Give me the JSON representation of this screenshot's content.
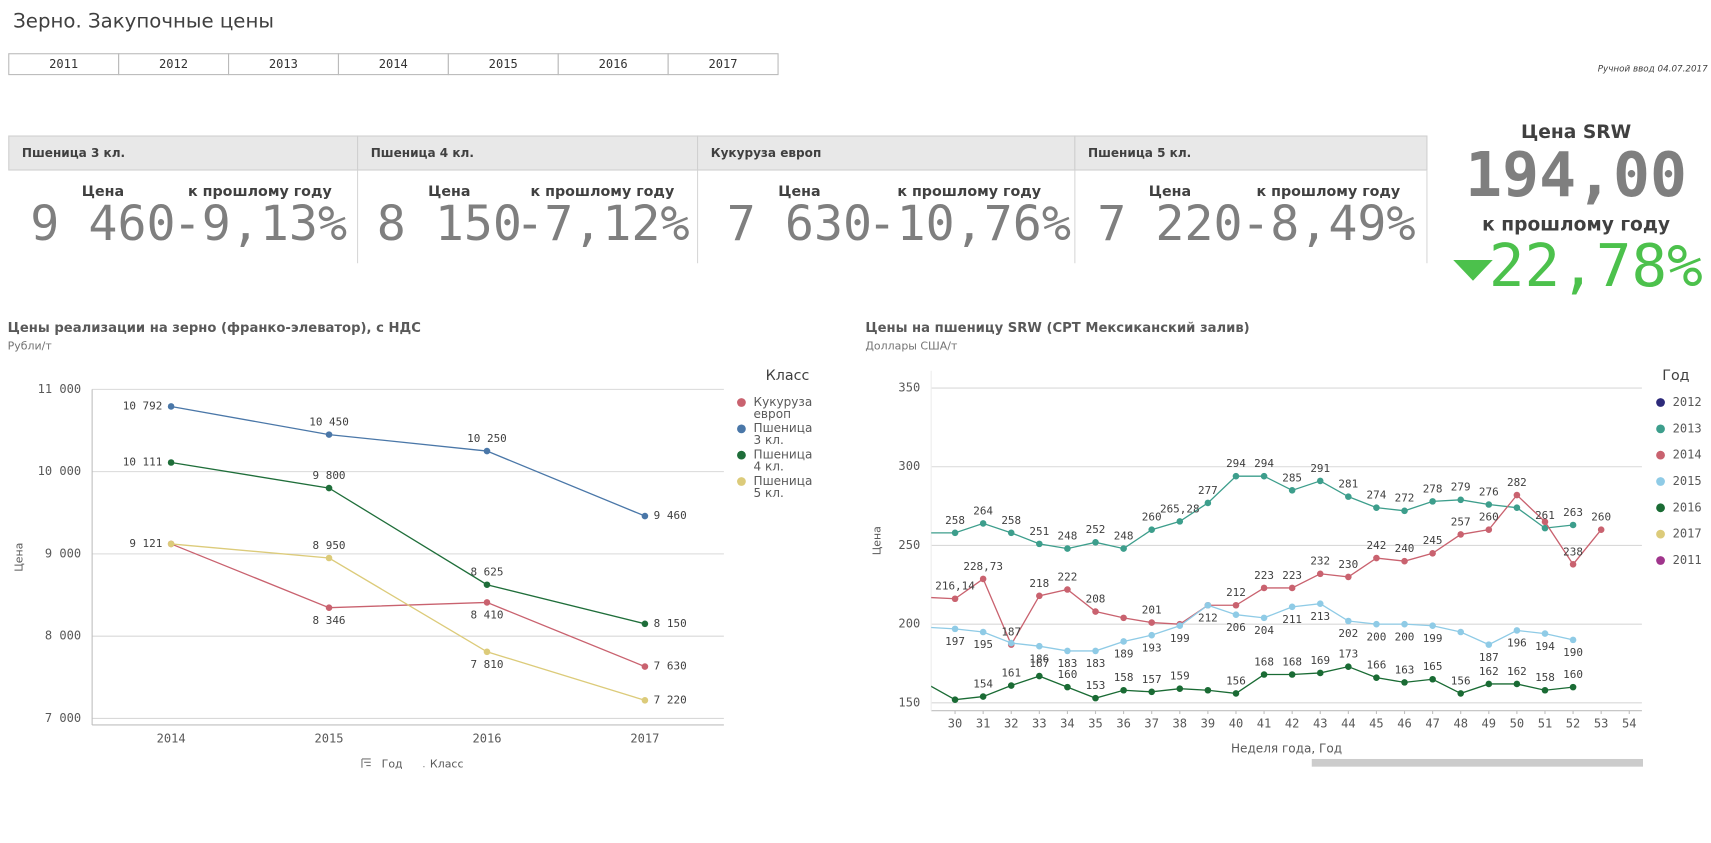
{
  "header": {
    "title": "Зерно. Закупочные цены",
    "note": "Ручной ввод 04.07.2017"
  },
  "year_buttons": [
    "2011",
    "2012",
    "2013",
    "2014",
    "2015",
    "2016",
    "2017"
  ],
  "kpis": [
    {
      "name": "Пшеница 3 кл.",
      "price_label": "Цена",
      "price": "9 460",
      "change_label": "к прошлому году",
      "change": "-9,13%"
    },
    {
      "name": "Пшеница 4 кл.",
      "price_label": "Цена",
      "price": "8 150",
      "change_label": "к прошлому году",
      "change": "-7,12%"
    },
    {
      "name": "Кукуруза европ",
      "price_label": "Цена",
      "price": "7 630",
      "change_label": "к прошлому году",
      "change": "-10,76%"
    },
    {
      "name": "Пшеница 5 кл.",
      "price_label": "Цена",
      "price": "7 220",
      "change_label": "к прошлому году",
      "change": "-8,49%"
    }
  ],
  "srw": {
    "title": "Цена SRW",
    "price": "194,00",
    "change_label": "к прошлому году",
    "change": "22,78%"
  },
  "chart_data": [
    {
      "type": "line",
      "title": "Цены реализации на зерно (франко-элеватор), с НДС",
      "subtitle": "Рубли/т",
      "y_label": "Цена",
      "legend_title": "Класс",
      "dimensions": [
        "Год",
        "Класс"
      ],
      "categories": [
        "2014",
        "2015",
        "2016",
        "2017"
      ],
      "ylim": [
        6920,
        11000
      ],
      "yticks": [
        {
          "value": 7000,
          "label": "7 000"
        },
        {
          "value": 8000,
          "label": "8 000"
        },
        {
          "value": 9000,
          "label": "9 000"
        },
        {
          "value": 10000,
          "label": "10 000"
        },
        {
          "value": 11000,
          "label": "11 000"
        }
      ],
      "grid": true,
      "series": [
        {
          "name": "Кукуруза европ",
          "color": "#c9626f",
          "values": [
            9121,
            8346,
            8410,
            7630
          ],
          "value_labels": [
            null,
            "8 346",
            "8 410",
            "7 630"
          ]
        },
        {
          "name": "Пшеница 3 кл.",
          "color": "#4a77a8",
          "values": [
            10792,
            10450,
            10250,
            9460
          ],
          "value_labels": [
            "10 792",
            "10 450",
            "10 250",
            "9 460"
          ]
        },
        {
          "name": "Пшеница 4 кл.",
          "color": "#1f6e3a",
          "values": [
            10111,
            9800,
            8625,
            8150
          ],
          "value_labels": [
            "10 111",
            "9 800",
            "8 625",
            "8 150"
          ]
        },
        {
          "name": "Пшеница 5 кл.",
          "color": "#dccb7a",
          "values": [
            9121,
            8950,
            7810,
            7220
          ],
          "value_labels": [
            "9 121",
            "8 950",
            "7 810",
            "7 220"
          ]
        }
      ]
    },
    {
      "type": "line",
      "title": "Цены на пшеницу SRW (CPT Мексиканский залив)",
      "subtitle": "Доллары США/т",
      "y_label": "Цена",
      "x_label": "Неделя года, Год",
      "legend_title": "Год",
      "x": [
        29,
        30,
        31,
        32,
        33,
        34,
        35,
        36,
        37,
        38,
        39,
        40,
        41,
        42,
        43,
        44,
        45,
        46,
        47,
        48,
        49,
        50,
        51,
        52,
        53
      ],
      "xlim": [
        29.15,
        54.45
      ],
      "xticks": [
        30,
        31,
        32,
        33,
        34,
        35,
        36,
        37,
        38,
        39,
        40,
        41,
        42,
        43,
        44,
        45,
        46,
        47,
        48,
        49,
        50,
        51,
        52,
        53,
        54
      ],
      "ylim": [
        145,
        361
      ],
      "yticks": [
        150,
        200,
        250,
        300,
        350
      ],
      "grid": true,
      "series": [
        {
          "name": "2012",
          "color": "#2d2a7a",
          "values": [
            null,
            null,
            null,
            null,
            null,
            null,
            null,
            null,
            null,
            null,
            null,
            null,
            null,
            null,
            null,
            null,
            null,
            null,
            null,
            null,
            null,
            null,
            null,
            null,
            null
          ]
        },
        {
          "name": "2013",
          "color": "#3d9e8c",
          "values": [
            258,
            258,
            264,
            258,
            251,
            248,
            252,
            248,
            260,
            265.28,
            277,
            294,
            294,
            285,
            291,
            281,
            274,
            272,
            278,
            279,
            276,
            274,
            261,
            263,
            null
          ],
          "value_labels": [
            null,
            "258",
            "264",
            "258",
            "251",
            "248",
            "252",
            "248",
            "260",
            "265,28",
            "277",
            "294",
            "294",
            "285",
            "291",
            "281",
            "274",
            "272",
            "278",
            "279",
            "276",
            null,
            "261",
            "263",
            null
          ]
        },
        {
          "name": "2014",
          "color": "#c9626f",
          "values": [
            217,
            216.14,
            228.73,
            187,
            218,
            222,
            208,
            204,
            201,
            200,
            212,
            212,
            223,
            223,
            232,
            230,
            242,
            240,
            245,
            257,
            260,
            282,
            265,
            238,
            260
          ],
          "value_labels": [
            null,
            "216,14",
            "228,73",
            "187",
            "218",
            "222",
            "208",
            null,
            "201",
            null,
            null,
            "212",
            "223",
            "223",
            "232",
            "230",
            "242",
            "240",
            "245",
            "257",
            "260",
            "282",
            null,
            "238",
            "260"
          ]
        },
        {
          "name": "2015",
          "color": "#8fcbe6",
          "values": [
            198,
            197,
            195,
            188,
            186,
            183,
            183,
            189,
            193,
            199,
            212,
            206,
            204,
            211,
            213,
            202,
            200,
            200,
            199,
            195,
            187,
            196,
            194,
            190,
            null
          ],
          "value_labels": [
            null,
            "197",
            "195",
            null,
            "186",
            "183",
            "183",
            "189",
            "193",
            "199",
            "212",
            "206",
            "204",
            "211",
            "213",
            "202",
            "200",
            "200",
            "199",
            null,
            "187",
            "196",
            "194",
            "190",
            null
          ]
        },
        {
          "name": "2016",
          "color": "#1a6b34",
          "values": [
            162,
            152,
            154,
            161,
            167,
            160,
            153,
            158,
            157,
            159,
            158,
            156,
            168,
            168,
            169,
            173,
            166,
            163,
            165,
            156,
            162,
            162,
            158,
            160,
            null
          ],
          "value_labels": [
            null,
            null,
            "154",
            "161",
            "167",
            "160",
            "153",
            "158",
            "157",
            "159",
            null,
            "156",
            "168",
            "168",
            "169",
            "173",
            "166",
            "163",
            "165",
            "156",
            "162",
            "162",
            "158",
            "160",
            null
          ]
        },
        {
          "name": "2017",
          "color": "#dccb7a",
          "values": [
            null,
            null,
            null,
            null,
            null,
            null,
            null,
            null,
            null,
            null,
            null,
            null,
            null,
            null,
            null,
            null,
            null,
            null,
            null,
            null,
            null,
            null,
            null,
            null,
            null
          ]
        },
        {
          "name": "2011",
          "color": "#a0358c",
          "values": [
            null,
            null,
            null,
            null,
            null,
            null,
            null,
            null,
            null,
            null,
            null,
            null,
            null,
            null,
            null,
            null,
            null,
            null,
            null,
            null,
            null,
            null,
            null,
            null,
            null
          ]
        }
      ]
    }
  ]
}
